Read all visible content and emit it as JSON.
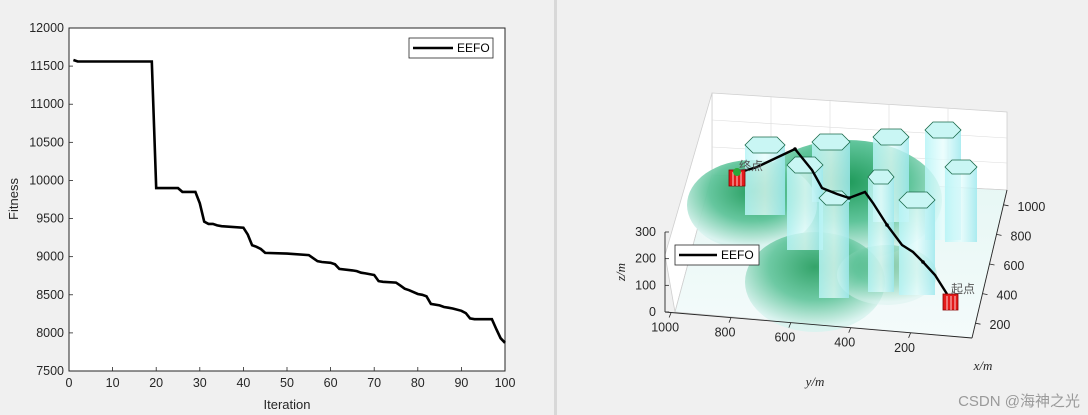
{
  "chart_data": [
    {
      "type": "line",
      "title": "",
      "xlabel": "Iteration",
      "ylabel": "Fitness",
      "xlim": [
        0,
        100
      ],
      "ylim": [
        7500,
        12000
      ],
      "xticks": [
        "0",
        "10",
        "20",
        "30",
        "40",
        "50",
        "60",
        "70",
        "80",
        "90",
        "100"
      ],
      "yticks": [
        "7500",
        "8000",
        "8500",
        "9000",
        "9500",
        "10000",
        "10500",
        "11000",
        "11500",
        "12000"
      ],
      "legend": "top-right",
      "grid": false,
      "series": [
        {
          "name": "EEFO",
          "color": "#000000",
          "x": [
            1,
            2,
            3,
            5,
            10,
            15,
            19,
            20,
            21,
            22,
            25,
            26,
            29,
            30,
            31,
            32,
            33,
            34,
            35,
            40,
            41,
            42,
            43,
            44,
            45,
            50,
            55,
            56,
            57,
            58,
            60,
            61,
            62,
            65,
            66,
            67,
            68,
            70,
            71,
            72,
            75,
            76,
            77,
            78,
            80,
            81,
            82,
            83,
            85,
            86,
            87,
            88,
            90,
            91,
            92,
            93,
            95,
            96,
            97,
            98,
            99,
            100
          ],
          "y": [
            11580,
            11560,
            11560,
            11560,
            11560,
            11560,
            11560,
            9900,
            9900,
            9900,
            9900,
            9850,
            9850,
            9700,
            9460,
            9430,
            9430,
            9410,
            9400,
            9380,
            9290,
            9150,
            9130,
            9100,
            9050,
            9040,
            9020,
            8980,
            8940,
            8930,
            8920,
            8900,
            8840,
            8820,
            8810,
            8790,
            8780,
            8760,
            8680,
            8670,
            8660,
            8620,
            8580,
            8560,
            8510,
            8500,
            8480,
            8380,
            8360,
            8340,
            8330,
            8320,
            8290,
            8260,
            8190,
            8180,
            8180,
            8180,
            8180,
            8050,
            7930,
            7870
          ]
        }
      ]
    },
    {
      "type": "scatter",
      "title": "",
      "xlabel": "x/m",
      "ylabel": "y/m",
      "zlabel": "z/m",
      "xticks": [
        "200",
        "400",
        "600",
        "800",
        "1000"
      ],
      "yticks": [
        "1000",
        "800",
        "600",
        "400",
        "200"
      ],
      "zticks": [
        "0",
        "100",
        "200",
        "300"
      ],
      "legend": "left",
      "annotations": [
        "终点",
        "起点"
      ],
      "series": [
        {
          "name": "EEFO",
          "color": "#000000"
        }
      ]
    }
  ],
  "watermark": "CSDN @海神之光"
}
